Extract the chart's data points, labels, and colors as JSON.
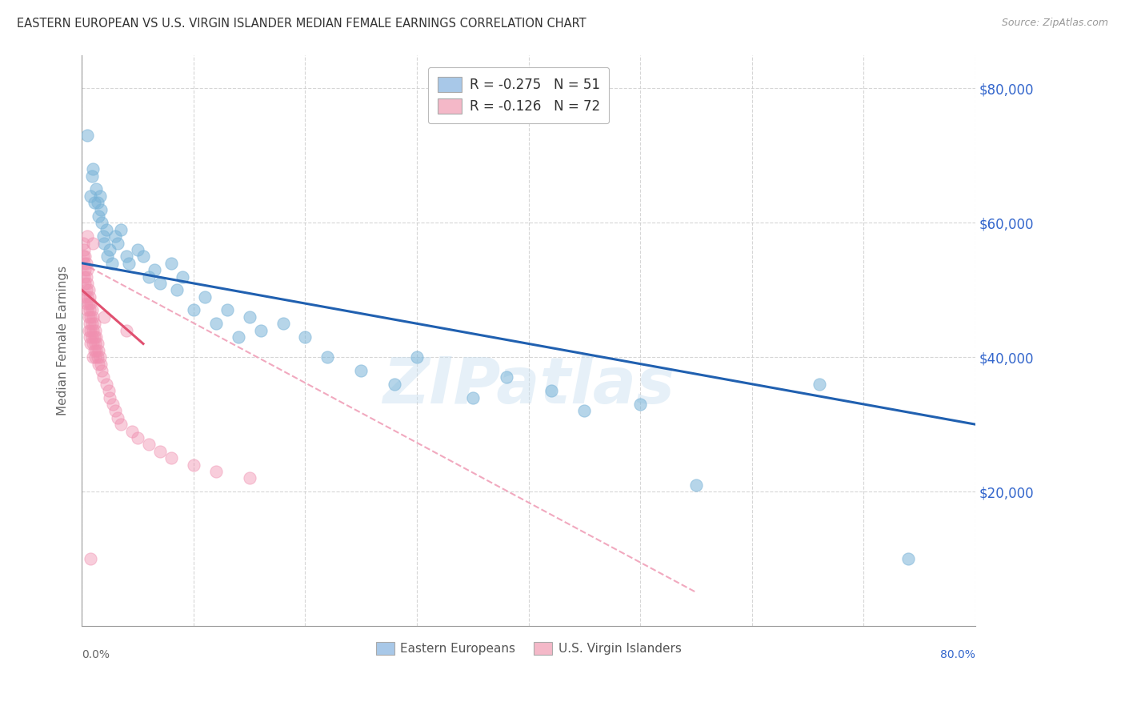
{
  "title": "EASTERN EUROPEAN VS U.S. VIRGIN ISLANDER MEDIAN FEMALE EARNINGS CORRELATION CHART",
  "source": "Source: ZipAtlas.com",
  "ylabel": "Median Female Earnings",
  "y_ticks": [
    20000,
    40000,
    60000,
    80000
  ],
  "y_tick_labels": [
    "$20,000",
    "$40,000",
    "$60,000",
    "$80,000"
  ],
  "xlim": [
    0.0,
    0.8
  ],
  "ylim": [
    0,
    85000
  ],
  "legend_line1": "R = -0.275   N = 51",
  "legend_line2": "R = -0.126   N = 72",
  "legend_label1": "Eastern Europeans",
  "legend_label2": "U.S. Virgin Islanders",
  "blue_patch_color": "#a8c8e8",
  "pink_patch_color": "#f4b8c8",
  "blue_scatter_color": "#7ab4d8",
  "pink_scatter_color": "#f090b0",
  "blue_line_color": "#2060b0",
  "pink_line_color": "#e05070",
  "dashed_line_color": "#f0a0b8",
  "blue_line": [
    [
      0.0,
      54000
    ],
    [
      0.8,
      30000
    ]
  ],
  "pink_line": [
    [
      0.0,
      50000
    ],
    [
      0.055,
      42000
    ]
  ],
  "dashed_line": [
    [
      0.0,
      54000
    ],
    [
      0.55,
      5000
    ]
  ],
  "blue_scatter": [
    [
      0.005,
      73000
    ],
    [
      0.008,
      64000
    ],
    [
      0.009,
      67000
    ],
    [
      0.01,
      68000
    ],
    [
      0.011,
      63000
    ],
    [
      0.013,
      65000
    ],
    [
      0.014,
      63000
    ],
    [
      0.015,
      61000
    ],
    [
      0.016,
      64000
    ],
    [
      0.017,
      62000
    ],
    [
      0.018,
      60000
    ],
    [
      0.019,
      58000
    ],
    [
      0.02,
      57000
    ],
    [
      0.022,
      59000
    ],
    [
      0.023,
      55000
    ],
    [
      0.025,
      56000
    ],
    [
      0.027,
      54000
    ],
    [
      0.03,
      58000
    ],
    [
      0.032,
      57000
    ],
    [
      0.035,
      59000
    ],
    [
      0.04,
      55000
    ],
    [
      0.042,
      54000
    ],
    [
      0.05,
      56000
    ],
    [
      0.055,
      55000
    ],
    [
      0.06,
      52000
    ],
    [
      0.065,
      53000
    ],
    [
      0.07,
      51000
    ],
    [
      0.08,
      54000
    ],
    [
      0.085,
      50000
    ],
    [
      0.09,
      52000
    ],
    [
      0.1,
      47000
    ],
    [
      0.11,
      49000
    ],
    [
      0.12,
      45000
    ],
    [
      0.13,
      47000
    ],
    [
      0.14,
      43000
    ],
    [
      0.15,
      46000
    ],
    [
      0.16,
      44000
    ],
    [
      0.18,
      45000
    ],
    [
      0.2,
      43000
    ],
    [
      0.22,
      40000
    ],
    [
      0.25,
      38000
    ],
    [
      0.28,
      36000
    ],
    [
      0.3,
      40000
    ],
    [
      0.35,
      34000
    ],
    [
      0.38,
      37000
    ],
    [
      0.42,
      35000
    ],
    [
      0.45,
      32000
    ],
    [
      0.5,
      33000
    ],
    [
      0.55,
      21000
    ],
    [
      0.66,
      36000
    ],
    [
      0.74,
      10000
    ]
  ],
  "pink_scatter": [
    [
      0.001,
      57000
    ],
    [
      0.001,
      55000
    ],
    [
      0.002,
      54000
    ],
    [
      0.002,
      52000
    ],
    [
      0.002,
      56000
    ],
    [
      0.003,
      53000
    ],
    [
      0.003,
      51000
    ],
    [
      0.003,
      55000
    ],
    [
      0.003,
      49000
    ],
    [
      0.004,
      52000
    ],
    [
      0.004,
      50000
    ],
    [
      0.004,
      48000
    ],
    [
      0.004,
      54000
    ],
    [
      0.005,
      51000
    ],
    [
      0.005,
      49000
    ],
    [
      0.005,
      47000
    ],
    [
      0.005,
      53000
    ],
    [
      0.006,
      50000
    ],
    [
      0.006,
      48000
    ],
    [
      0.006,
      46000
    ],
    [
      0.006,
      44000
    ],
    [
      0.007,
      49000
    ],
    [
      0.007,
      47000
    ],
    [
      0.007,
      45000
    ],
    [
      0.007,
      43000
    ],
    [
      0.008,
      48000
    ],
    [
      0.008,
      46000
    ],
    [
      0.008,
      44000
    ],
    [
      0.008,
      42000
    ],
    [
      0.009,
      47000
    ],
    [
      0.009,
      45000
    ],
    [
      0.009,
      43000
    ],
    [
      0.01,
      46000
    ],
    [
      0.01,
      44000
    ],
    [
      0.01,
      42000
    ],
    [
      0.01,
      40000
    ],
    [
      0.011,
      45000
    ],
    [
      0.011,
      43000
    ],
    [
      0.011,
      41000
    ],
    [
      0.012,
      44000
    ],
    [
      0.012,
      42000
    ],
    [
      0.012,
      40000
    ],
    [
      0.013,
      43000
    ],
    [
      0.013,
      41000
    ],
    [
      0.014,
      42000
    ],
    [
      0.014,
      40000
    ],
    [
      0.015,
      41000
    ],
    [
      0.015,
      39000
    ],
    [
      0.016,
      40000
    ],
    [
      0.017,
      39000
    ],
    [
      0.018,
      38000
    ],
    [
      0.019,
      37000
    ],
    [
      0.02,
      46000
    ],
    [
      0.022,
      36000
    ],
    [
      0.024,
      35000
    ],
    [
      0.025,
      34000
    ],
    [
      0.028,
      33000
    ],
    [
      0.03,
      32000
    ],
    [
      0.032,
      31000
    ],
    [
      0.035,
      30000
    ],
    [
      0.04,
      44000
    ],
    [
      0.045,
      29000
    ],
    [
      0.05,
      28000
    ],
    [
      0.06,
      27000
    ],
    [
      0.07,
      26000
    ],
    [
      0.08,
      25000
    ],
    [
      0.1,
      24000
    ],
    [
      0.12,
      23000
    ],
    [
      0.15,
      22000
    ],
    [
      0.01,
      57000
    ],
    [
      0.005,
      58000
    ],
    [
      0.008,
      10000
    ]
  ],
  "watermark": "ZIPatlas",
  "background_color": "#ffffff",
  "grid_color": "#cccccc"
}
